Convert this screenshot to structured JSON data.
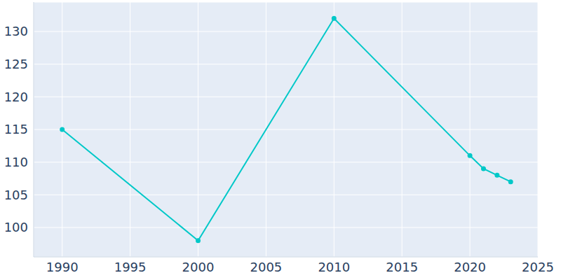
{
  "chart_data": {
    "type": "line",
    "x": [
      1990,
      2000,
      2010,
      2020,
      2021,
      2022,
      2023
    ],
    "values": [
      115,
      98,
      132,
      111,
      109,
      108,
      107
    ],
    "color": "#00c8c8",
    "xlim": [
      1987.9,
      2025
    ],
    "xticks": [
      1990,
      1995,
      2000,
      2005,
      2010,
      2015,
      2020,
      2025
    ],
    "ylim": [
      95.5,
      134.5
    ],
    "yticks": [
      100,
      105,
      110,
      115,
      120,
      125,
      130
    ],
    "grid": true,
    "marker": "circle"
  }
}
